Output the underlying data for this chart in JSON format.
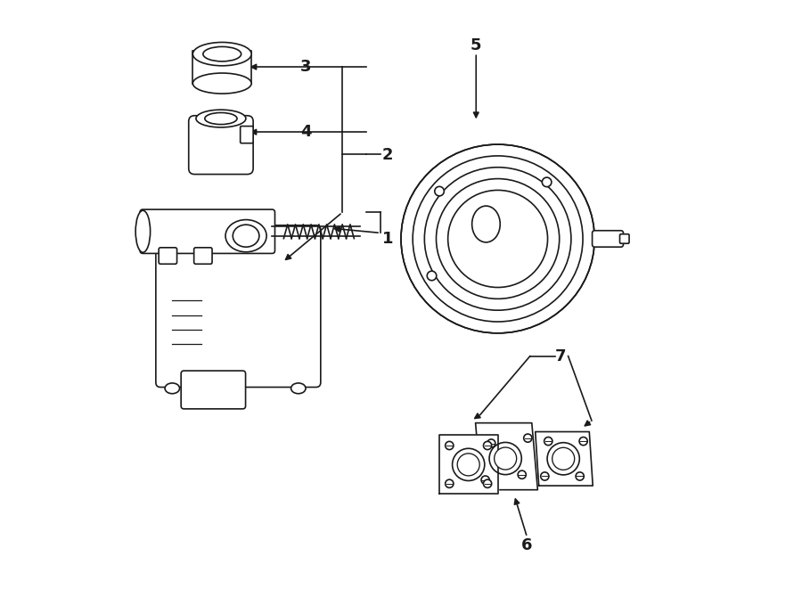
{
  "bg_color": "#ffffff",
  "line_color": "#1a1a1a",
  "label_color": "#1a1a1a",
  "label_fontsize": 13,
  "fig_width": 9.0,
  "fig_height": 6.61
}
